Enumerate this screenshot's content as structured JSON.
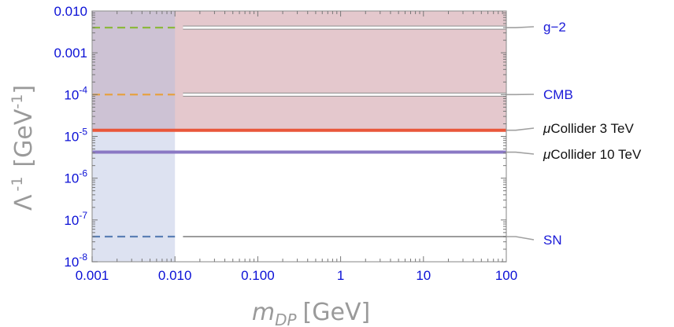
{
  "chart_data": {
    "type": "area",
    "x_scale": "log",
    "y_scale": "log",
    "xlim": [
      0.001,
      100
    ],
    "ylim": [
      1e-08,
      0.01
    ],
    "xlabel": {
      "main": "m",
      "sub": "DP",
      "unit": "[GeV]"
    },
    "ylabel": {
      "main": "Λ",
      "sup": "-1",
      "unit_pre": "[GeV",
      "unit_sup": "-1",
      "unit_post": "]"
    },
    "x_ticks": [
      {
        "value": 0.001,
        "label": "0.001"
      },
      {
        "value": 0.01,
        "label": "0.010"
      },
      {
        "value": 0.1,
        "label": "0.100"
      },
      {
        "value": 1,
        "label": "1"
      },
      {
        "value": 10,
        "label": "10"
      },
      {
        "value": 100,
        "label": "100"
      }
    ],
    "y_ticks": [
      {
        "value": 0.01,
        "base": "0.010",
        "exp": ""
      },
      {
        "value": 0.001,
        "base": "0.001",
        "exp": ""
      },
      {
        "value": 0.0001,
        "base": "10",
        "exp": "-4"
      },
      {
        "value": 1e-05,
        "base": "10",
        "exp": "-5"
      },
      {
        "value": 1e-06,
        "base": "10",
        "exp": "-6"
      },
      {
        "value": 1e-07,
        "base": "10",
        "exp": "-7"
      },
      {
        "value": 1e-08,
        "base": "10",
        "exp": "-8"
      }
    ],
    "regions": [
      {
        "name": "upper-excluded",
        "x": [
          0.001,
          100
        ],
        "y": [
          1.4e-05,
          0.01
        ],
        "color": "#c9919c",
        "opacity": 0.5
      },
      {
        "name": "low-mass-excluded",
        "x": [
          0.001,
          0.01
        ],
        "y": [
          1e-08,
          0.01
        ],
        "color": "#aebbdd",
        "opacity": 0.42
      }
    ],
    "series": [
      {
        "label": "g−2",
        "y": 0.004,
        "color": "#8cb83d",
        "style": "dashed-then-white"
      },
      {
        "label": "CMB",
        "y": 0.0001,
        "color": "#e8a03a",
        "style": "dashed-then-white"
      },
      {
        "label_prefix": "μ",
        "label": "Collider 3 TeV",
        "y": 1.4e-05,
        "color": "#e9573a",
        "style": "solid"
      },
      {
        "label_prefix": "μ",
        "label": "Collider 10 TeV",
        "y": 4.2e-06,
        "color": "#8a78c4",
        "style": "solid"
      },
      {
        "label": "SN",
        "y": 4e-08,
        "color": "#5b7fb5",
        "style": "dashed-then-grey"
      }
    ],
    "colors": {
      "tick_text": "#0b10d6",
      "axis_title": "#9a9a9a",
      "frame": "#9a9a9a",
      "callout": "#a0a0a0",
      "label_blue": "#1a1ad8",
      "label_black": "#111111"
    }
  }
}
